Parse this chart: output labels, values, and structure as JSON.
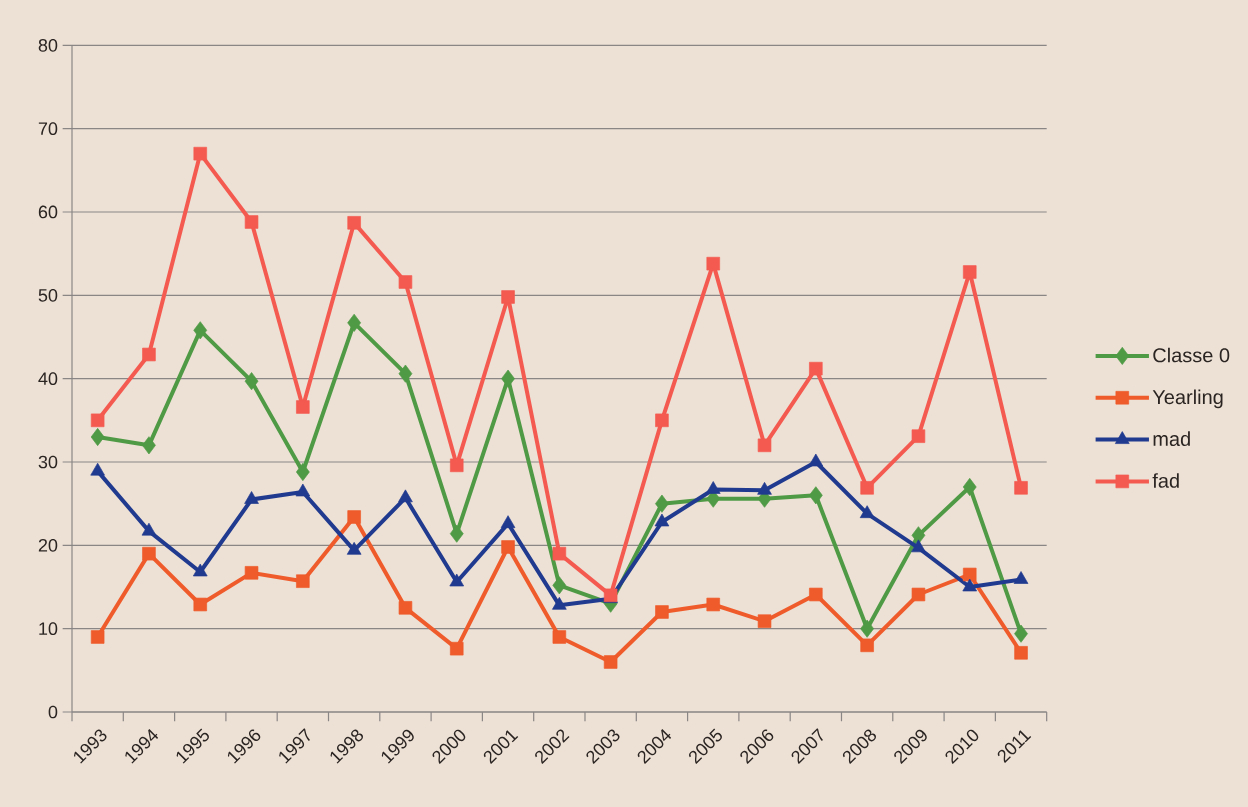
{
  "chart_data": {
    "type": "line",
    "categories": [
      "1993",
      "1994",
      "1995",
      "1996",
      "1997",
      "1998",
      "1999",
      "2000",
      "2001",
      "2002",
      "2003",
      "2004",
      "2005",
      "2006",
      "2007",
      "2008",
      "2009",
      "2010",
      "2011"
    ],
    "series": [
      {
        "name": "Classe 0",
        "color": "#4f9a45",
        "marker": "diamond",
        "values": [
          33,
          32,
          45.8,
          39.7,
          28.8,
          46.7,
          40.6,
          21.4,
          40,
          15.2,
          13,
          25,
          25.6,
          25.6,
          26,
          10,
          21.2,
          27,
          9.4
        ]
      },
      {
        "name": "Yearling",
        "color": "#ef5b2b",
        "marker": "square",
        "values": [
          9,
          19,
          12.9,
          16.7,
          15.7,
          23.4,
          12.5,
          7.6,
          19.8,
          9,
          6,
          12,
          12.9,
          10.9,
          14.1,
          8,
          14.1,
          16.5,
          7.1
        ]
      },
      {
        "name": "mad",
        "color": "#1f3a8f",
        "marker": "triangle",
        "values": [
          28.9,
          21.7,
          16.8,
          25.5,
          26.4,
          19.4,
          25.7,
          15.6,
          22.6,
          12.8,
          13.6,
          22.8,
          26.7,
          26.6,
          30,
          23.8,
          19.7,
          15,
          15.9
        ]
      },
      {
        "name": "fad",
        "color": "#f45a50",
        "marker": "square",
        "values": [
          35,
          42.9,
          67,
          58.8,
          36.6,
          58.7,
          51.6,
          29.6,
          49.8,
          19,
          14,
          35,
          53.8,
          32,
          41.2,
          26.9,
          33.1,
          52.8,
          26.9
        ]
      }
    ],
    "ylim": [
      0,
      80
    ],
    "yticks": [
      0,
      10,
      20,
      30,
      40,
      50,
      60,
      70,
      80
    ],
    "grid": "y",
    "legend": "right",
    "line_style": "solid"
  }
}
